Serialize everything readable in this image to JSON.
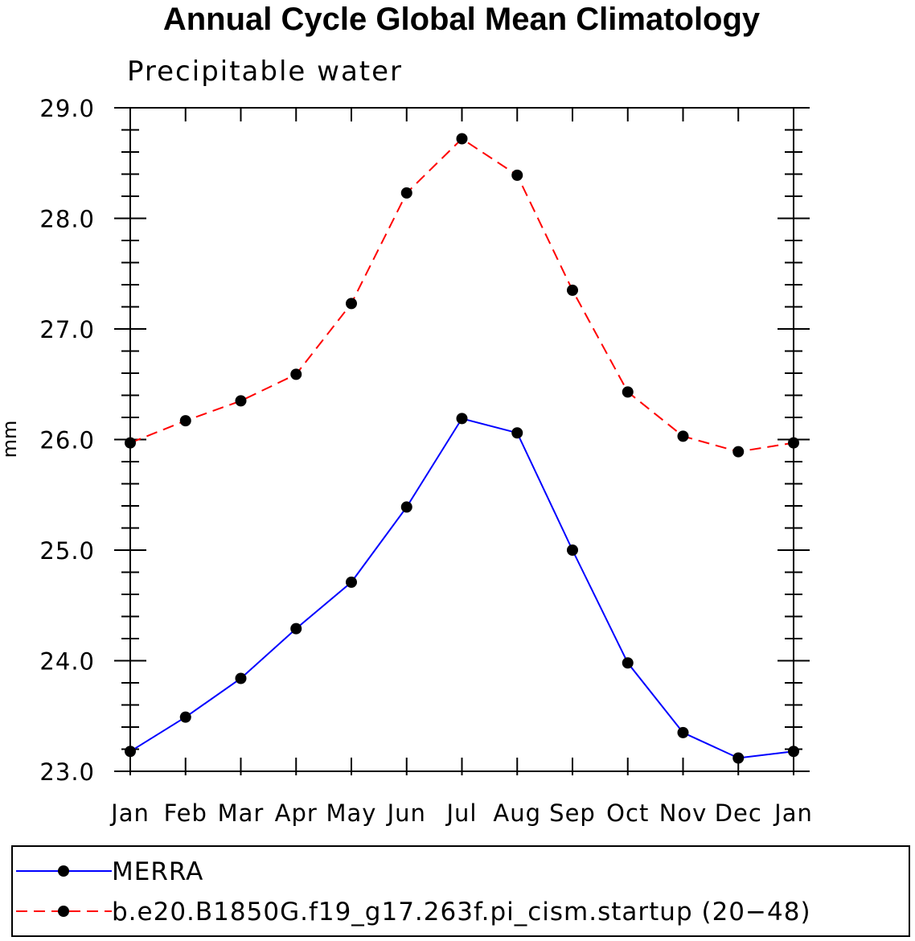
{
  "chart_data": {
    "type": "line",
    "title": "Annual Cycle Global Mean Climatology",
    "subtitle": "Precipitable water",
    "xlabel": "",
    "ylabel": "mm",
    "categories": [
      "Jan",
      "Feb",
      "Mar",
      "Apr",
      "May",
      "Jun",
      "Jul",
      "Aug",
      "Sep",
      "Oct",
      "Nov",
      "Dec",
      "Jan"
    ],
    "ylim": [
      23.0,
      29.0
    ],
    "yticks": [
      23.0,
      24.0,
      25.0,
      26.0,
      27.0,
      28.0,
      29.0
    ],
    "ytick_labels": [
      "23.0",
      "24.0",
      "25.0",
      "26.0",
      "27.0",
      "28.0",
      "29.0"
    ],
    "series": [
      {
        "name": "MERRA",
        "color": "#0000ff",
        "line_style": "solid",
        "marker": "filled-circle",
        "values": [
          23.18,
          23.49,
          23.84,
          24.29,
          24.71,
          25.39,
          26.19,
          26.06,
          25.0,
          23.98,
          23.35,
          23.12,
          23.18
        ]
      },
      {
        "name": "b.e20.B1850G.f19_g17.263f.pi_cism.startup (20−48)",
        "color": "#ff0000",
        "line_style": "dashed",
        "marker": "filled-circle",
        "values": [
          25.97,
          26.17,
          26.35,
          26.59,
          27.23,
          28.23,
          28.72,
          28.39,
          27.35,
          26.43,
          26.03,
          25.89,
          25.97
        ]
      }
    ],
    "legend_position": "bottom"
  }
}
